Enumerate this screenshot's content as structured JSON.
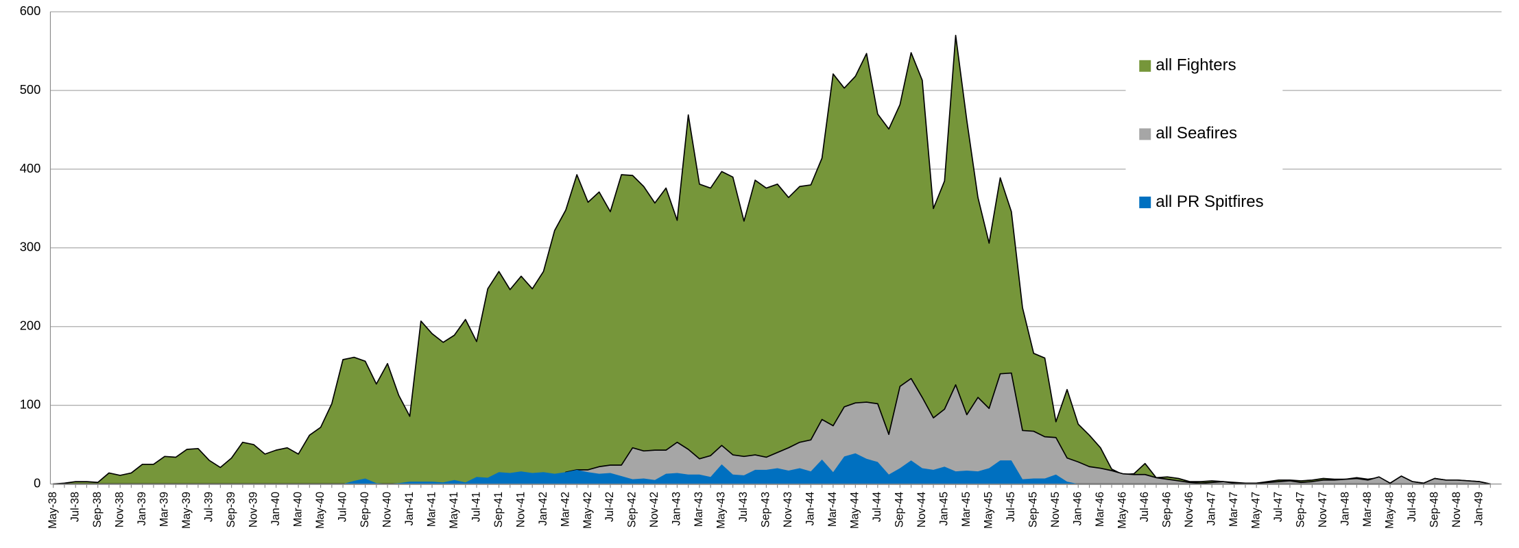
{
  "chart_data": {
    "type": "area",
    "categories": [
      "May-38",
      null,
      "Jul-38",
      null,
      "Sep-38",
      null,
      "Nov-38",
      null,
      "Jan-39",
      null,
      "Mar-39",
      null,
      "May-39",
      null,
      "Jul-39",
      null,
      "Sep-39",
      null,
      "Nov-39",
      null,
      "Jan-40",
      null,
      "Mar-40",
      null,
      "May-40",
      null,
      "Jul-40",
      null,
      "Sep-40",
      null,
      "Nov-40",
      null,
      "Jan-41",
      null,
      "Mar-41",
      null,
      "May-41",
      null,
      "Jul-41",
      null,
      "Sep-41",
      null,
      "Nov-41",
      null,
      "Jan-42",
      null,
      "Mar-42",
      null,
      "May-42",
      null,
      "Jul-42",
      null,
      "Sep-42",
      null,
      "Nov-42",
      null,
      "Jan-43",
      null,
      "Mar-43",
      null,
      "May-43",
      null,
      "Jul-43",
      null,
      "Sep-43",
      null,
      "Nov-43",
      null,
      "Jan-44",
      null,
      "Mar-44",
      null,
      "May-44",
      null,
      "Jul-44",
      null,
      "Sep-44",
      null,
      "Nov-44",
      null,
      "Jan-45",
      null,
      "Mar-45",
      null,
      "May-45",
      null,
      "Jul-45",
      null,
      "Sep-45",
      null,
      "Nov-45",
      null,
      "Jan-46",
      null,
      "Mar-46",
      null,
      "May-46",
      null,
      "Jul-46",
      null,
      "Sep-46",
      null,
      "Nov-46",
      null,
      "Jan-47",
      null,
      "Mar-47",
      null,
      "May-47",
      null,
      "Jul-47",
      null,
      "Sep-47",
      null,
      "Nov-47",
      null,
      "Jan-48",
      null,
      "Mar-48",
      null,
      "May-48",
      null,
      "Jul-48",
      null,
      "Sep-48",
      null,
      "Nov-48",
      null,
      "Jan-49",
      null
    ],
    "series": [
      {
        "name": "all Fighters",
        "color": "#76963a",
        "values": [
          0,
          1,
          3,
          3,
          2,
          14,
          11,
          14,
          25,
          25,
          35,
          34,
          44,
          45,
          30,
          21,
          33,
          53,
          50,
          38,
          43,
          46,
          38,
          62,
          72,
          102,
          158,
          161,
          156,
          127,
          153,
          113,
          86,
          207,
          191,
          180,
          189,
          209,
          181,
          248,
          270,
          247,
          264,
          248,
          270,
          322,
          348,
          393,
          358,
          371,
          346,
          393,
          392,
          378,
          357,
          376,
          335,
          469,
          381,
          376,
          397,
          390,
          334,
          386,
          376,
          381,
          364,
          378,
          380,
          414,
          521,
          503,
          518,
          547,
          470,
          451,
          482,
          548,
          513,
          350,
          385,
          570,
          462,
          364,
          306,
          389,
          346,
          224,
          166,
          160,
          79,
          120,
          76,
          62,
          46,
          19,
          12,
          13,
          26,
          8,
          9,
          7,
          3,
          3,
          4,
          3,
          2,
          1,
          1,
          3,
          5,
          5,
          4,
          5,
          7,
          6,
          6,
          8,
          6,
          8,
          1,
          10,
          3,
          1,
          7,
          5,
          5,
          4,
          3,
          0
        ]
      },
      {
        "name": "all Seafires",
        "color": "#a6a6a6",
        "values": [
          0,
          0,
          0,
          0,
          0,
          0,
          0,
          0,
          0,
          0,
          0,
          0,
          0,
          0,
          0,
          0,
          0,
          0,
          0,
          0,
          0,
          0,
          0,
          0,
          0,
          0,
          0,
          0,
          0,
          0,
          0,
          0,
          0,
          0,
          0,
          0,
          0,
          0,
          0,
          0,
          0,
          0,
          0,
          0,
          0,
          0,
          15,
          18,
          18,
          22,
          24,
          24,
          46,
          42,
          43,
          43,
          53,
          44,
          32,
          36,
          49,
          37,
          35,
          37,
          34,
          40,
          46,
          53,
          56,
          82,
          74,
          98,
          103,
          104,
          102,
          63,
          124,
          134,
          110,
          84,
          95,
          126,
          88,
          110,
          96,
          140,
          141,
          68,
          67,
          60,
          59,
          33,
          28,
          22,
          20,
          17,
          13,
          12,
          12,
          8,
          6,
          4,
          2,
          1,
          2,
          3,
          1,
          1,
          1,
          2,
          3,
          4,
          2,
          3,
          5,
          5,
          6,
          7,
          5,
          9,
          1,
          10,
          3,
          1,
          7,
          5,
          5,
          4,
          3,
          0
        ]
      },
      {
        "name": "all PR Spitfires",
        "color": "#0070c0",
        "values": [
          0,
          0,
          0,
          0,
          0,
          0,
          0,
          0,
          0,
          0,
          0,
          0,
          0,
          0,
          0,
          0,
          0,
          0,
          0,
          0,
          0,
          0,
          0,
          0,
          0,
          0,
          0,
          4,
          7,
          1,
          0,
          1,
          3,
          3,
          3,
          2,
          5,
          2,
          9,
          8,
          15,
          14,
          16,
          14,
          15,
          13,
          15,
          18,
          15,
          13,
          14,
          10,
          6,
          7,
          5,
          13,
          14,
          12,
          12,
          9,
          25,
          12,
          11,
          18,
          18,
          20,
          17,
          20,
          16,
          31,
          15,
          35,
          39,
          32,
          28,
          12,
          20,
          30,
          20,
          18,
          22,
          16,
          17,
          16,
          20,
          30,
          30,
          6,
          7,
          7,
          12,
          3,
          0,
          0,
          0,
          0,
          0,
          0,
          0,
          0,
          0,
          0,
          0,
          0,
          0,
          0,
          0,
          0,
          0,
          0,
          0,
          0,
          0,
          0,
          0,
          0,
          0,
          0,
          0,
          0,
          0,
          0,
          0,
          0,
          0,
          0,
          0,
          0,
          0,
          0
        ]
      }
    ],
    "ylim": [
      0,
      600
    ],
    "yticks": [
      0,
      100,
      200,
      300,
      400,
      500,
      600
    ],
    "grid": true
  }
}
